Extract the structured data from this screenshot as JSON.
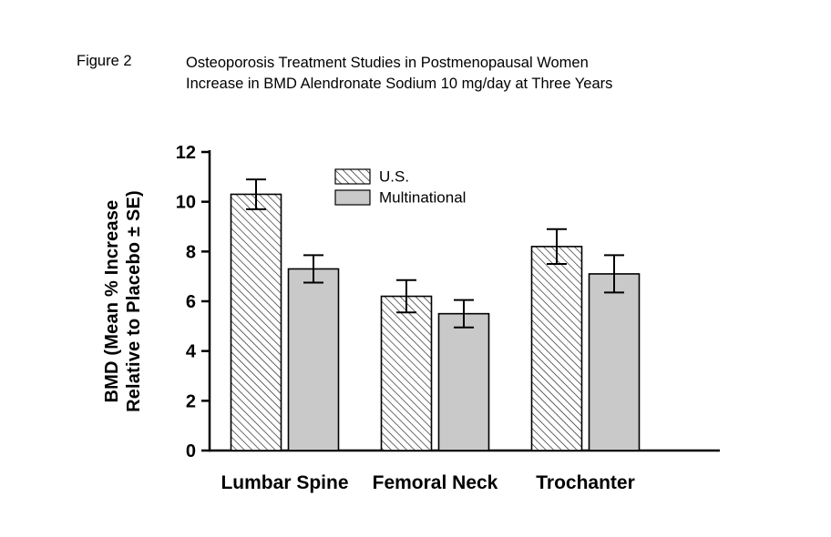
{
  "figure": {
    "label": "Figure 2",
    "title_line1": "Osteoporosis Treatment Studies in Postmenopausal Women",
    "title_line2": "Increase in BMD Alendronate Sodium 10 mg/day at Three Years"
  },
  "chart_data": {
    "type": "bar",
    "categories": [
      "Lumbar Spine",
      "Femoral Neck",
      "Trochanter"
    ],
    "series": [
      {
        "name": "U.S.",
        "style": "hatched",
        "color": "#ffffff",
        "values": [
          10.3,
          6.2,
          8.2
        ],
        "errors": [
          0.6,
          0.65,
          0.7
        ]
      },
      {
        "name": "Multinational",
        "style": "solid",
        "color": "#c9c9c9",
        "values": [
          7.3,
          5.5,
          7.1
        ],
        "errors": [
          0.55,
          0.55,
          0.75
        ]
      }
    ],
    "ylabel": "BMD (Mean % Increase\nRelative to Placebo ± SE)",
    "xlabel": "",
    "ylim": [
      0,
      12
    ],
    "yticks": [
      0,
      2,
      4,
      6,
      8,
      10,
      12
    ],
    "grid": false,
    "legend_position": "top-inside",
    "axis_color": "#000000",
    "error_bars": "± SE, both whiskers with caps"
  }
}
